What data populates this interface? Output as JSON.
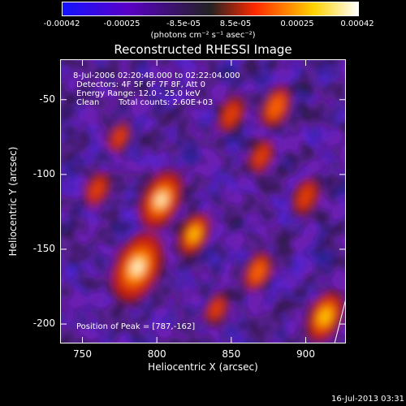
{
  "colorbar": {
    "ticks": [
      "-0.00042",
      "-0.00025",
      "-8.5e-05",
      "8.5e-05",
      "0.00025",
      "0.00042"
    ],
    "tick_values": [
      -0.00042,
      -0.00025,
      -8.5e-05,
      8.5e-05,
      0.00025,
      0.00042
    ],
    "range": [
      -0.00042,
      0.00042
    ],
    "units": "(photons cm⁻² s⁻¹ asec⁻²)",
    "colors": [
      "#1414ff",
      "#5a00c8",
      "#282828",
      "#ff2800",
      "#ffd200",
      "#ffffff"
    ]
  },
  "chart_data": {
    "type": "heatmap",
    "title": "Reconstructed RHESSI Image",
    "xlabel": "Heliocentric X (arcsec)",
    "ylabel": "Heliocentric Y (arcsec)",
    "xlim": [
      735,
      927
    ],
    "ylim": [
      -213,
      -23
    ],
    "xticks": [
      750,
      800,
      850,
      900
    ],
    "yticks": [
      -50,
      -100,
      -150,
      -200
    ],
    "annotations": [
      "8-Jul-2006 02:20:48.000 to 02:22:04.000",
      "Detectors: 4F 5F 6F 7F 8F, Att 0",
      "Energy Range: 12.0 - 25.0 keV",
      "Clean",
      "Total counts: 2.60E+03",
      "Position of Peak = [787,-162]"
    ],
    "peak": [
      787,
      -162
    ],
    "sources": [
      {
        "x": 787,
        "y": -162,
        "intensity": 1.0
      },
      {
        "x": 803,
        "y": -117,
        "intensity": 0.75
      },
      {
        "x": 825,
        "y": -140,
        "intensity": 0.45
      },
      {
        "x": 913,
        "y": -195,
        "intensity": 0.6
      },
      {
        "x": 880,
        "y": -55,
        "intensity": 0.4
      },
      {
        "x": 850,
        "y": -60,
        "intensity": 0.3
      },
      {
        "x": 868,
        "y": -165,
        "intensity": 0.35
      },
      {
        "x": 900,
        "y": -115,
        "intensity": 0.3
      },
      {
        "x": 760,
        "y": -110,
        "intensity": 0.25
      },
      {
        "x": 870,
        "y": -88,
        "intensity": 0.25
      },
      {
        "x": 840,
        "y": -190,
        "intensity": 0.2
      },
      {
        "x": 775,
        "y": -75,
        "intensity": 0.2
      }
    ]
  },
  "timestamp": "16-Jul-2013 03:31"
}
